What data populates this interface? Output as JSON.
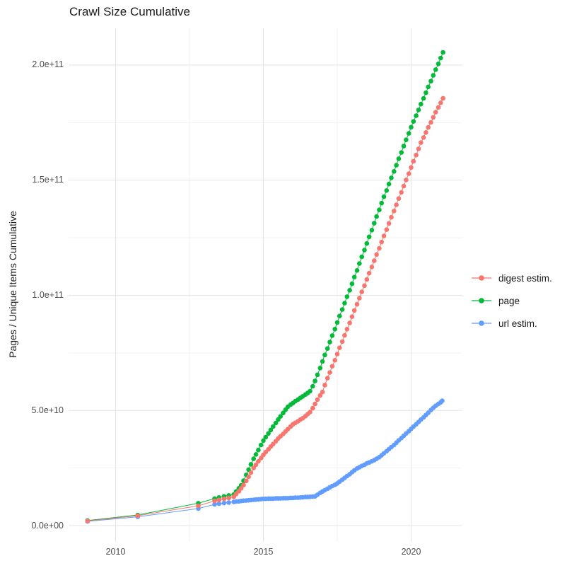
{
  "chart_data": {
    "type": "scatter",
    "title": "Crawl Size Cumulative",
    "xlabel": "",
    "ylabel": "Pages / Unique Items Cumulative",
    "x_unit": "year",
    "y_value_unit": "items x 1e9 (axis shown in e-notation)",
    "xlim": [
      2008.4,
      2021.8
    ],
    "ylim": [
      -8,
      217
    ],
    "grid": true,
    "legend_position": "right",
    "x_ticks": [
      {
        "v": 2010,
        "label": "2010"
      },
      {
        "v": 2015,
        "label": "2015"
      },
      {
        "v": 2020,
        "label": "2020"
      }
    ],
    "x_minor": [
      2012.5,
      2017.5
    ],
    "y_ticks": [
      {
        "v": 0,
        "label": "0.0e+00"
      },
      {
        "v": 50,
        "label": "5.0e+10"
      },
      {
        "v": 100,
        "label": "1.0e+11"
      },
      {
        "v": 150,
        "label": "1.5e+11"
      },
      {
        "v": 200,
        "label": "2.0e+11"
      }
    ],
    "y_minor": [
      25,
      75,
      125,
      175
    ],
    "series": [
      {
        "name": "digest estim.",
        "color": "#F8766D",
        "points": [
          [
            2009.05,
            2.0
          ],
          [
            2010.75,
            4.3
          ],
          [
            2012.8,
            8.6
          ],
          [
            2013.35,
            10.7
          ],
          [
            2013.5,
            11.2
          ],
          [
            2013.67,
            11.6
          ],
          [
            2013.83,
            12.0
          ],
          [
            2014.0,
            12.5
          ],
          [
            2014.08,
            13.7
          ],
          [
            2014.17,
            14.9
          ],
          [
            2014.25,
            16.2
          ],
          [
            2014.33,
            17.6
          ],
          [
            2014.42,
            19.4
          ],
          [
            2014.5,
            21.2
          ],
          [
            2014.58,
            23.0
          ],
          [
            2014.67,
            25.0
          ],
          [
            2014.75,
            26.4
          ],
          [
            2014.83,
            27.9
          ],
          [
            2014.92,
            29.3
          ],
          [
            2015.0,
            30.7
          ],
          [
            2015.08,
            31.9
          ],
          [
            2015.17,
            33.1
          ],
          [
            2015.25,
            34.3
          ],
          [
            2015.33,
            35.4
          ],
          [
            2015.42,
            36.6
          ],
          [
            2015.5,
            37.8
          ],
          [
            2015.58,
            38.8
          ],
          [
            2015.67,
            39.8
          ],
          [
            2015.75,
            40.9
          ],
          [
            2015.83,
            41.9
          ],
          [
            2015.92,
            43.0
          ],
          [
            2016.0,
            44.0
          ],
          [
            2016.08,
            44.6
          ],
          [
            2016.17,
            45.3
          ],
          [
            2016.25,
            46.0
          ],
          [
            2016.33,
            46.6
          ],
          [
            2016.42,
            47.5
          ],
          [
            2016.5,
            48.4
          ],
          [
            2016.58,
            49.3
          ],
          [
            2016.67,
            51.0
          ],
          [
            2016.75,
            52.8
          ],
          [
            2016.83,
            54.7
          ],
          [
            2016.92,
            56.5
          ],
          [
            2017.0,
            58.0
          ],
          [
            2017.08,
            61.0
          ],
          [
            2017.17,
            64.0
          ],
          [
            2017.25,
            66.5
          ],
          [
            2017.33,
            69.2
          ],
          [
            2017.42,
            71.8
          ],
          [
            2017.5,
            74.5
          ],
          [
            2017.58,
            77.2
          ],
          [
            2017.67,
            79.9
          ],
          [
            2017.75,
            82.6
          ],
          [
            2017.83,
            85.3
          ],
          [
            2017.92,
            88.0
          ],
          [
            2018.0,
            90.7
          ],
          [
            2018.08,
            93.4
          ],
          [
            2018.17,
            96.1
          ],
          [
            2018.25,
            98.8
          ],
          [
            2018.33,
            101.5
          ],
          [
            2018.42,
            104.2
          ],
          [
            2018.5,
            106.9
          ],
          [
            2018.58,
            109.6
          ],
          [
            2018.67,
            112.3
          ],
          [
            2018.75,
            115.0
          ],
          [
            2018.83,
            117.7
          ],
          [
            2018.92,
            120.4
          ],
          [
            2019.0,
            123.1
          ],
          [
            2019.08,
            125.8
          ],
          [
            2019.17,
            128.5
          ],
          [
            2019.25,
            131.2
          ],
          [
            2019.33,
            133.9
          ],
          [
            2019.42,
            136.6
          ],
          [
            2019.5,
            139.3
          ],
          [
            2019.58,
            142.0
          ],
          [
            2019.67,
            144.7
          ],
          [
            2019.75,
            147.4
          ],
          [
            2019.83,
            150.1
          ],
          [
            2019.92,
            152.8
          ],
          [
            2020.0,
            155.5
          ],
          [
            2020.08,
            158.2
          ],
          [
            2020.17,
            160.9
          ],
          [
            2020.25,
            163.6
          ],
          [
            2020.33,
            166.3
          ],
          [
            2020.42,
            168.5
          ],
          [
            2020.5,
            170.7
          ],
          [
            2020.58,
            172.9
          ],
          [
            2020.67,
            175.1
          ],
          [
            2020.75,
            177.3
          ],
          [
            2020.83,
            179.5
          ],
          [
            2020.92,
            181.6
          ],
          [
            2021.0,
            183.6
          ],
          [
            2021.08,
            185.5
          ]
        ]
      },
      {
        "name": "page",
        "color": "#00BA38",
        "points": [
          [
            2009.05,
            2.2
          ],
          [
            2010.75,
            4.6
          ],
          [
            2012.8,
            9.7
          ],
          [
            2013.35,
            11.7
          ],
          [
            2013.5,
            12.2
          ],
          [
            2013.67,
            12.7
          ],
          [
            2013.83,
            13.1
          ],
          [
            2014.0,
            13.5
          ],
          [
            2014.08,
            14.8
          ],
          [
            2014.17,
            16.2
          ],
          [
            2014.25,
            17.5
          ],
          [
            2014.33,
            19.5
          ],
          [
            2014.42,
            22.0
          ],
          [
            2014.5,
            24.3
          ],
          [
            2014.58,
            26.6
          ],
          [
            2014.67,
            29.0
          ],
          [
            2014.75,
            30.9
          ],
          [
            2014.83,
            32.8
          ],
          [
            2014.92,
            35.0
          ],
          [
            2015.0,
            36.9
          ],
          [
            2015.08,
            38.4
          ],
          [
            2015.17,
            40.0
          ],
          [
            2015.25,
            41.5
          ],
          [
            2015.33,
            43.0
          ],
          [
            2015.42,
            44.5
          ],
          [
            2015.5,
            46.0
          ],
          [
            2015.58,
            47.4
          ],
          [
            2015.67,
            48.9
          ],
          [
            2015.75,
            50.3
          ],
          [
            2015.83,
            51.6
          ],
          [
            2015.92,
            52.5
          ],
          [
            2016.0,
            53.2
          ],
          [
            2016.08,
            54.0
          ],
          [
            2016.17,
            54.7
          ],
          [
            2016.25,
            55.4
          ],
          [
            2016.33,
            56.1
          ],
          [
            2016.42,
            56.9
          ],
          [
            2016.5,
            57.6
          ],
          [
            2016.58,
            58.4
          ],
          [
            2016.67,
            60.5
          ],
          [
            2016.75,
            62.8
          ],
          [
            2016.83,
            65.5
          ],
          [
            2016.92,
            68.4
          ],
          [
            2017.0,
            71.3
          ],
          [
            2017.08,
            74.1
          ],
          [
            2017.17,
            76.9
          ],
          [
            2017.25,
            79.7
          ],
          [
            2017.33,
            82.5
          ],
          [
            2017.42,
            85.3
          ],
          [
            2017.5,
            88.2
          ],
          [
            2017.58,
            91.0
          ],
          [
            2017.67,
            93.8
          ],
          [
            2017.75,
            96.6
          ],
          [
            2017.83,
            99.4
          ],
          [
            2017.92,
            102.2
          ],
          [
            2018.0,
            105.0
          ],
          [
            2018.08,
            107.9
          ],
          [
            2018.17,
            110.8
          ],
          [
            2018.25,
            113.8
          ],
          [
            2018.33,
            116.7
          ],
          [
            2018.42,
            119.6
          ],
          [
            2018.5,
            122.5
          ],
          [
            2018.58,
            125.4
          ],
          [
            2018.67,
            128.3
          ],
          [
            2018.75,
            131.3
          ],
          [
            2018.83,
            134.2
          ],
          [
            2018.92,
            137.1
          ],
          [
            2019.0,
            140.0
          ],
          [
            2019.08,
            142.8
          ],
          [
            2019.17,
            145.5
          ],
          [
            2019.25,
            148.3
          ],
          [
            2019.33,
            151.0
          ],
          [
            2019.42,
            153.8
          ],
          [
            2019.5,
            156.5
          ],
          [
            2019.58,
            159.3
          ],
          [
            2019.67,
            162.0
          ],
          [
            2019.75,
            164.8
          ],
          [
            2019.83,
            167.5
          ],
          [
            2019.92,
            170.3
          ],
          [
            2020.0,
            173.0
          ],
          [
            2020.08,
            175.5
          ],
          [
            2020.17,
            178.0
          ],
          [
            2020.25,
            180.5
          ],
          [
            2020.33,
            183.0
          ],
          [
            2020.42,
            185.5
          ],
          [
            2020.5,
            188.0
          ],
          [
            2020.58,
            190.5
          ],
          [
            2020.67,
            193.0
          ],
          [
            2020.75,
            195.5
          ],
          [
            2020.83,
            198.0
          ],
          [
            2020.92,
            200.5
          ],
          [
            2021.0,
            203.0
          ],
          [
            2021.08,
            205.5
          ]
        ]
      },
      {
        "name": "url estim.",
        "color": "#619CFF",
        "points": [
          [
            2009.05,
            1.8
          ],
          [
            2010.75,
            3.8
          ],
          [
            2012.8,
            7.4
          ],
          [
            2013.35,
            9.2
          ],
          [
            2013.5,
            9.5
          ],
          [
            2013.67,
            9.8
          ],
          [
            2013.83,
            10.0
          ],
          [
            2014.0,
            10.3
          ],
          [
            2014.08,
            10.4
          ],
          [
            2014.17,
            10.5
          ],
          [
            2014.25,
            10.7
          ],
          [
            2014.33,
            10.8
          ],
          [
            2014.42,
            10.9
          ],
          [
            2014.5,
            11.0
          ],
          [
            2014.58,
            11.1
          ],
          [
            2014.67,
            11.2
          ],
          [
            2014.75,
            11.3
          ],
          [
            2014.83,
            11.4
          ],
          [
            2014.92,
            11.5
          ],
          [
            2015.0,
            11.6
          ],
          [
            2015.08,
            11.6
          ],
          [
            2015.17,
            11.7
          ],
          [
            2015.25,
            11.7
          ],
          [
            2015.33,
            11.7
          ],
          [
            2015.42,
            11.8
          ],
          [
            2015.5,
            11.8
          ],
          [
            2015.58,
            11.8
          ],
          [
            2015.67,
            11.9
          ],
          [
            2015.75,
            11.9
          ],
          [
            2015.83,
            11.9
          ],
          [
            2015.92,
            12.0
          ],
          [
            2016.0,
            12.0
          ],
          [
            2016.08,
            12.1
          ],
          [
            2016.17,
            12.1
          ],
          [
            2016.25,
            12.2
          ],
          [
            2016.33,
            12.3
          ],
          [
            2016.42,
            12.4
          ],
          [
            2016.5,
            12.4
          ],
          [
            2016.58,
            12.5
          ],
          [
            2016.67,
            12.6
          ],
          [
            2016.75,
            12.7
          ],
          [
            2016.83,
            13.4
          ],
          [
            2016.92,
            14.2
          ],
          [
            2017.0,
            14.8
          ],
          [
            2017.08,
            15.4
          ],
          [
            2017.17,
            16.0
          ],
          [
            2017.25,
            16.6
          ],
          [
            2017.33,
            17.2
          ],
          [
            2017.42,
            17.7
          ],
          [
            2017.5,
            18.3
          ],
          [
            2017.58,
            19.1
          ],
          [
            2017.67,
            19.9
          ],
          [
            2017.75,
            20.7
          ],
          [
            2017.83,
            21.5
          ],
          [
            2017.92,
            22.3
          ],
          [
            2018.0,
            23.2
          ],
          [
            2018.08,
            24.0
          ],
          [
            2018.17,
            24.8
          ],
          [
            2018.25,
            25.3
          ],
          [
            2018.33,
            25.9
          ],
          [
            2018.42,
            26.4
          ],
          [
            2018.5,
            27.0
          ],
          [
            2018.58,
            27.4
          ],
          [
            2018.67,
            27.9
          ],
          [
            2018.75,
            28.4
          ],
          [
            2018.83,
            29.0
          ],
          [
            2018.92,
            29.7
          ],
          [
            2019.0,
            30.5
          ],
          [
            2019.08,
            31.4
          ],
          [
            2019.17,
            32.3
          ],
          [
            2019.25,
            33.2
          ],
          [
            2019.33,
            34.1
          ],
          [
            2019.42,
            35.0
          ],
          [
            2019.5,
            36.0
          ],
          [
            2019.58,
            37.0
          ],
          [
            2019.67,
            38.0
          ],
          [
            2019.75,
            39.0
          ],
          [
            2019.83,
            40.0
          ],
          [
            2019.92,
            41.0
          ],
          [
            2020.0,
            42.0
          ],
          [
            2020.08,
            43.0
          ],
          [
            2020.17,
            44.0
          ],
          [
            2020.25,
            45.0
          ],
          [
            2020.33,
            46.0
          ],
          [
            2020.42,
            47.0
          ],
          [
            2020.5,
            48.0
          ],
          [
            2020.58,
            49.0
          ],
          [
            2020.67,
            50.2
          ],
          [
            2020.75,
            51.1
          ],
          [
            2020.83,
            52.0
          ],
          [
            2020.92,
            52.8
          ],
          [
            2021.0,
            53.5
          ],
          [
            2021.05,
            54.2
          ]
        ]
      }
    ],
    "colors": {
      "digest_estim": "#F8766D",
      "page": "#00BA38",
      "url_estim": "#619CFF",
      "grid_major": "#e5e5e5",
      "grid_minor": "#f2f2f2",
      "tick_text": "#4d4d4d"
    }
  }
}
